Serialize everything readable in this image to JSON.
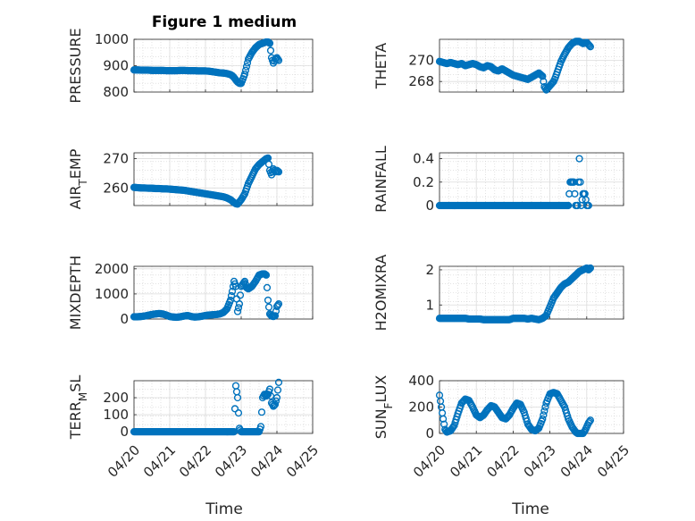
{
  "figure": {
    "title": "Figure 1 medium",
    "xlabel": "Time",
    "marker_color": "#0072BD",
    "x_ticks": [
      "04/20",
      "04/21",
      "04/22",
      "04/23",
      "04/24",
      "04/25"
    ]
  },
  "chart_data": [
    {
      "type": "scatter",
      "ylabel": "PRESSURE",
      "ylim": [
        800,
        1000
      ],
      "yticks": [
        "800",
        "900",
        "1000"
      ],
      "yticks_values": [
        800,
        900,
        1000
      ],
      "xlim": [
        0,
        5
      ],
      "x": [
        0.0,
        0.1,
        0.2,
        0.3,
        0.4,
        0.5,
        0.6,
        0.7,
        0.8,
        0.9,
        1.0,
        1.1,
        1.2,
        1.3,
        1.4,
        1.5,
        1.6,
        1.7,
        1.8,
        1.9,
        2.0,
        2.1,
        2.2,
        2.3,
        2.4,
        2.5,
        2.6,
        2.7,
        2.75,
        2.8,
        2.85,
        2.9,
        2.95,
        3.0,
        3.05,
        3.1,
        3.2,
        3.3,
        3.4,
        3.5,
        3.6,
        3.7,
        3.75,
        3.8,
        3.85,
        3.9,
        3.95,
        4.0,
        4.05
      ],
      "values": [
        884,
        884,
        883,
        883,
        883,
        882,
        882,
        882,
        882,
        881,
        881,
        881,
        881,
        882,
        882,
        881,
        881,
        881,
        880,
        880,
        880,
        879,
        877,
        875,
        873,
        872,
        870,
        866,
        862,
        855,
        846,
        838,
        833,
        833,
        850,
        868,
        925,
        950,
        968,
        980,
        985,
        990,
        990,
        985,
        930,
        910,
        925,
        930,
        920
      ]
    },
    {
      "type": "scatter",
      "ylabel": "THETA",
      "ylim": [
        267,
        272
      ],
      "yticks": [
        "268",
        "270"
      ],
      "yticks_values": [
        268,
        270
      ],
      "xlim": [
        0,
        5
      ],
      "x": [
        0.0,
        0.1,
        0.2,
        0.3,
        0.4,
        0.5,
        0.6,
        0.7,
        0.8,
        0.9,
        1.0,
        1.1,
        1.2,
        1.3,
        1.4,
        1.5,
        1.6,
        1.7,
        1.8,
        1.9,
        2.0,
        2.1,
        2.2,
        2.3,
        2.4,
        2.5,
        2.6,
        2.7,
        2.8,
        2.85,
        2.9,
        2.95,
        3.0,
        3.05,
        3.1,
        3.15,
        3.2,
        3.25,
        3.3,
        3.4,
        3.5,
        3.6,
        3.7,
        3.8,
        3.9,
        4.0,
        4.1
      ],
      "values": [
        269.9,
        269.8,
        269.7,
        269.8,
        269.7,
        269.6,
        269.7,
        269.5,
        269.6,
        269.7,
        269.6,
        269.4,
        269.3,
        269.5,
        269.4,
        269.1,
        269.0,
        269.2,
        269.0,
        268.8,
        268.6,
        268.5,
        268.4,
        268.3,
        268.2,
        268.4,
        268.6,
        268.8,
        268.5,
        267.5,
        267.2,
        267.4,
        267.6,
        267.8,
        268.0,
        268.4,
        268.9,
        269.4,
        269.9,
        270.6,
        271.2,
        271.6,
        271.8,
        271.8,
        271.6,
        271.7,
        271.3
      ]
    },
    {
      "type": "scatter",
      "ylabel": "AIR_TEMP",
      "ylim": [
        254,
        272
      ],
      "yticks": [
        "260",
        "270"
      ],
      "yticks_values": [
        260,
        270
      ],
      "xlim": [
        0,
        5
      ],
      "x": [
        0.0,
        0.1,
        0.2,
        0.3,
        0.4,
        0.5,
        0.6,
        0.7,
        0.8,
        0.9,
        1.0,
        1.1,
        1.2,
        1.3,
        1.4,
        1.5,
        1.6,
        1.7,
        1.8,
        1.9,
        2.0,
        2.1,
        2.2,
        2.3,
        2.4,
        2.5,
        2.6,
        2.7,
        2.75,
        2.8,
        2.85,
        2.9,
        3.0,
        3.1,
        3.2,
        3.3,
        3.4,
        3.5,
        3.6,
        3.7,
        3.75,
        3.8,
        3.85,
        3.9,
        3.95,
        4.0,
        4.05
      ],
      "values": [
        260.2,
        260.1,
        260.0,
        260.0,
        259.9,
        259.9,
        259.8,
        259.8,
        259.7,
        259.7,
        259.6,
        259.5,
        259.4,
        259.3,
        259.2,
        259.0,
        258.8,
        258.6,
        258.4,
        258.2,
        258.0,
        257.8,
        257.6,
        257.4,
        257.2,
        257.0,
        256.6,
        256.0,
        255.5,
        255.0,
        254.6,
        254.5,
        256.0,
        258.0,
        261.5,
        264.0,
        266.5,
        268.0,
        269.0,
        270.0,
        270.2,
        266.0,
        264.5,
        266.5,
        265.5,
        266.0,
        265.5
      ]
    },
    {
      "type": "scatter",
      "ylabel": "RAINFALL",
      "ylim": [
        0,
        0.45
      ],
      "yticks": [
        "0",
        "0.2",
        "0.4"
      ],
      "yticks_values": [
        0,
        0.2,
        0.4
      ],
      "xlim": [
        0,
        5
      ],
      "x": [
        0.0,
        0.2,
        0.4,
        0.6,
        0.8,
        1.0,
        1.2,
        1.4,
        1.6,
        1.8,
        2.0,
        2.2,
        2.4,
        2.6,
        2.8,
        3.0,
        3.2,
        3.3,
        3.4,
        3.5,
        3.55,
        3.6,
        3.65,
        3.7,
        3.75,
        3.8,
        3.85,
        3.9,
        3.95,
        4.0,
        4.05
      ],
      "values": [
        0,
        0,
        0,
        0,
        0,
        0,
        0,
        0,
        0,
        0,
        0,
        0,
        0,
        0,
        0,
        0,
        0,
        0,
        0,
        0,
        0.2,
        0.2,
        0.2,
        0,
        0,
        0.4,
        0,
        0.1,
        0.1,
        0,
        0
      ]
    },
    {
      "type": "scatter",
      "ylabel": "MIXDEPTH",
      "ylim": [
        0,
        2100
      ],
      "yticks": [
        "0",
        "1000",
        "2000"
      ],
      "yticks_values": [
        0,
        1000,
        2000
      ],
      "xlim": [
        0,
        5
      ],
      "x": [
        0.0,
        0.1,
        0.2,
        0.3,
        0.4,
        0.5,
        0.6,
        0.7,
        0.8,
        0.9,
        1.0,
        1.1,
        1.2,
        1.3,
        1.4,
        1.5,
        1.6,
        1.7,
        1.8,
        1.9,
        2.0,
        2.1,
        2.2,
        2.3,
        2.4,
        2.5,
        2.6,
        2.7,
        2.75,
        2.8,
        2.85,
        2.9,
        2.95,
        3.0,
        3.05,
        3.1,
        3.15,
        3.2,
        3.3,
        3.4,
        3.5,
        3.6,
        3.65,
        3.7,
        3.75,
        3.8,
        3.85,
        3.9,
        3.95,
        4.0,
        4.05
      ],
      "values": [
        90,
        90,
        100,
        120,
        150,
        180,
        200,
        220,
        200,
        160,
        100,
        80,
        70,
        90,
        120,
        140,
        100,
        80,
        90,
        110,
        140,
        160,
        170,
        180,
        200,
        260,
        400,
        750,
        1100,
        1500,
        1300,
        300,
        600,
        1300,
        1400,
        1500,
        1250,
        1200,
        1300,
        1500,
        1750,
        1800,
        1800,
        1750,
        750,
        200,
        120,
        100,
        130,
        500,
        600
      ]
    },
    {
      "type": "scatter",
      "ylabel": "H2OMIXRA",
      "ylim": [
        0.6,
        2.1
      ],
      "yticks": [
        "1",
        "2"
      ],
      "yticks_values": [
        1,
        2
      ],
      "xlim": [
        0,
        5
      ],
      "x": [
        0.0,
        0.1,
        0.2,
        0.3,
        0.4,
        0.5,
        0.6,
        0.7,
        0.8,
        0.9,
        1.0,
        1.1,
        1.2,
        1.3,
        1.4,
        1.5,
        1.6,
        1.7,
        1.8,
        1.9,
        2.0,
        2.1,
        2.2,
        2.3,
        2.4,
        2.5,
        2.6,
        2.7,
        2.8,
        2.9,
        3.0,
        3.1,
        3.2,
        3.3,
        3.4,
        3.5,
        3.6,
        3.7,
        3.8,
        3.9,
        4.0,
        4.05,
        4.1
      ],
      "values": [
        0.62,
        0.62,
        0.62,
        0.62,
        0.62,
        0.62,
        0.62,
        0.62,
        0.6,
        0.6,
        0.6,
        0.6,
        0.58,
        0.58,
        0.58,
        0.58,
        0.58,
        0.58,
        0.58,
        0.58,
        0.62,
        0.62,
        0.62,
        0.62,
        0.6,
        0.62,
        0.6,
        0.58,
        0.62,
        0.7,
        0.95,
        1.2,
        1.35,
        1.5,
        1.6,
        1.65,
        1.75,
        1.85,
        1.95,
        2.0,
        2.05,
        2.0,
        2.05
      ]
    },
    {
      "type": "scatter",
      "ylabel": "TERR_MSL",
      "ylim": [
        -10,
        300
      ],
      "yticks": [
        "0",
        "100",
        "200"
      ],
      "yticks_values": [
        0,
        100,
        200
      ],
      "xlim": [
        0,
        5
      ],
      "x": [
        0.0,
        0.2,
        0.4,
        0.6,
        0.8,
        1.0,
        1.2,
        1.4,
        1.6,
        1.8,
        2.0,
        2.2,
        2.4,
        2.6,
        2.8,
        2.85,
        2.9,
        2.95,
        3.0,
        3.1,
        3.2,
        3.3,
        3.4,
        3.5,
        3.55,
        3.6,
        3.65,
        3.7,
        3.75,
        3.8,
        3.85,
        3.9,
        3.95,
        4.0,
        4.05
      ],
      "values": [
        0,
        0,
        0,
        0,
        0,
        0,
        0,
        0,
        0,
        0,
        0,
        0,
        0,
        0,
        0,
        270,
        200,
        20,
        0,
        0,
        0,
        0,
        0,
        0,
        30,
        200,
        220,
        210,
        220,
        250,
        170,
        150,
        160,
        200,
        290
      ]
    },
    {
      "type": "scatter",
      "ylabel": "SUN_FLUX",
      "ylim": [
        0,
        400
      ],
      "yticks": [
        "0",
        "200",
        "400"
      ],
      "yticks_values": [
        0,
        200,
        400
      ],
      "xlim": [
        0,
        5
      ],
      "x": [
        0.0,
        0.05,
        0.1,
        0.15,
        0.2,
        0.3,
        0.4,
        0.5,
        0.6,
        0.7,
        0.8,
        0.9,
        1.0,
        1.1,
        1.2,
        1.3,
        1.4,
        1.5,
        1.6,
        1.7,
        1.8,
        1.9,
        2.0,
        2.1,
        2.2,
        2.3,
        2.4,
        2.5,
        2.6,
        2.7,
        2.8,
        2.9,
        3.0,
        3.1,
        3.2,
        3.3,
        3.4,
        3.5,
        3.6,
        3.7,
        3.75,
        3.8,
        3.85,
        3.9,
        3.95,
        4.0,
        4.05,
        4.1
      ],
      "values": [
        290,
        200,
        110,
        30,
        10,
        20,
        60,
        150,
        230,
        260,
        250,
        200,
        140,
        120,
        140,
        180,
        210,
        200,
        160,
        120,
        110,
        140,
        190,
        230,
        220,
        160,
        70,
        30,
        20,
        40,
        110,
        230,
        300,
        310,
        300,
        250,
        200,
        110,
        50,
        10,
        0,
        0,
        0,
        0,
        20,
        50,
        80,
        100
      ]
    }
  ]
}
